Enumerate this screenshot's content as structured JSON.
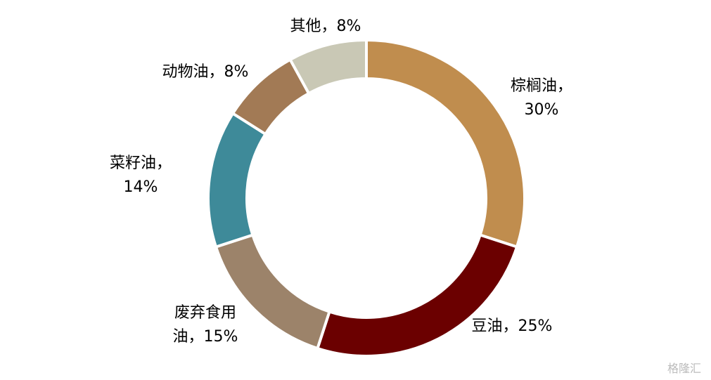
{
  "chart_data": {
    "type": "pie",
    "categories": [
      "棕榈油，",
      "豆油，",
      "废弃食用油，",
      "菜籽油，",
      "动物油，",
      "其他，"
    ],
    "values": [
      30,
      25,
      15,
      14,
      8,
      8
    ],
    "value_labels": [
      "30%",
      "25%",
      "15%",
      "14%",
      "8%",
      "8%"
    ],
    "colors": [
      "#C08D4E",
      "#6B0000",
      "#9C836A",
      "#3E8A99",
      "#A27A55",
      "#C9C8B5"
    ],
    "donut": true
  },
  "watermark": "格隆汇"
}
